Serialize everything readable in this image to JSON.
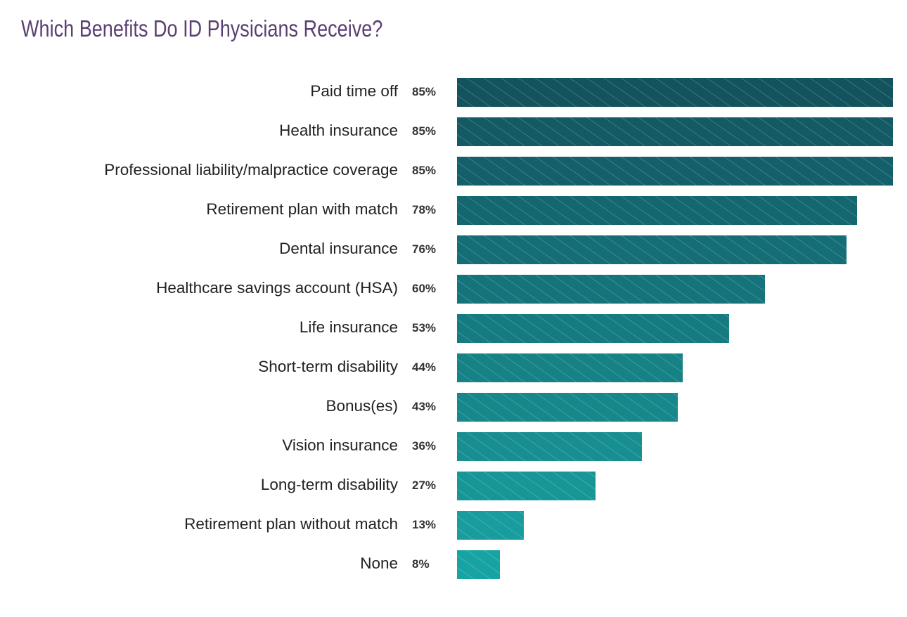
{
  "chart_data": {
    "type": "bar",
    "orientation": "horizontal",
    "title": "Which Benefits Do ID Physicians Receive?",
    "xlabel": "",
    "ylabel": "",
    "grid": false,
    "categories": [
      "Paid time off",
      "Health insurance",
      "Professional liability/malpractice coverage",
      "Retirement plan with match",
      "Dental insurance",
      "Healthcare savings account (HSA)",
      "Life insurance",
      "Short-term disability",
      "Bonus(es)",
      "Vision insurance",
      "Long-term disability",
      "Retirement plan without match",
      "None"
    ],
    "values": [
      85,
      85,
      85,
      78,
      76,
      60,
      53,
      44,
      43,
      36,
      27,
      13,
      8
    ],
    "value_labels": [
      "85%",
      "85%",
      "85%",
      "78%",
      "76%",
      "60%",
      "53%",
      "44%",
      "43%",
      "36%",
      "27%",
      "13%",
      "8%"
    ],
    "xlim": [
      0,
      85
    ],
    "colors": {
      "top": "#13535e",
      "bottom": "#18a3a3",
      "title": "#5b3f73"
    }
  }
}
